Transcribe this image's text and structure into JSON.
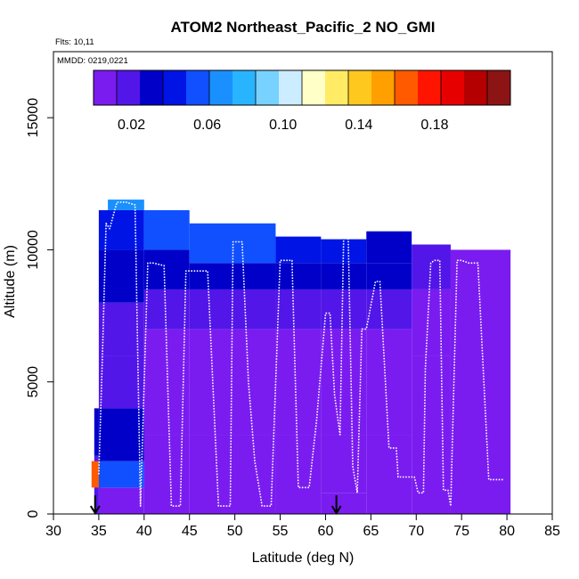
{
  "chart_data": {
    "type": "heatmap",
    "title": "ATOM2 Northeast_Pacific_2 NO_GMI",
    "annotations": {
      "flights": "Flts: 10,11",
      "dates": "MMDD: 0219,0221"
    },
    "xlabel": "Latitude (deg N)",
    "ylabel": "Altitude (m)",
    "xlim": [
      30,
      85
    ],
    "ylim": [
      0,
      17500
    ],
    "x_ticks": [
      30,
      35,
      40,
      45,
      50,
      55,
      60,
      65,
      70,
      75,
      80,
      85
    ],
    "y_ticks": [
      0,
      5000,
      10000,
      15000
    ],
    "colorbar": {
      "range": [
        0,
        0.22
      ],
      "tick_values": [
        0.02,
        0.06,
        0.1,
        0.14,
        0.18
      ],
      "tick_labels": [
        "0.02",
        "0.06",
        "0.10",
        "0.14",
        "0.18"
      ],
      "colors": [
        "#7a1cf0",
        "#5216e8",
        "#0000c8",
        "#0014e6",
        "#1050ff",
        "#1a90ff",
        "#28b4ff",
        "#78d2ff",
        "#ccecff",
        "#ffffc8",
        "#ffec64",
        "#ffc81e",
        "#ffa000",
        "#ff5a00",
        "#ff1400",
        "#e60000",
        "#b40000",
        "#8c1414"
      ]
    },
    "columns": [
      {
        "lat": [
          34.5,
          35.0
        ],
        "top": 4000,
        "levels": [
          [
            0,
            2200,
            0.02
          ],
          [
            2200,
            4000,
            0.025
          ]
        ]
      },
      {
        "lat": [
          34.2,
          35.3
        ],
        "top": 2000,
        "levels": [
          [
            1000,
            2000,
            0.16
          ]
        ]
      },
      {
        "lat": [
          35.0,
          40.0
        ],
        "top": 11500,
        "levels": [
          [
            0,
            1000,
            0.01
          ],
          [
            1000,
            2000,
            0.05
          ],
          [
            2000,
            4000,
            0.025
          ],
          [
            4000,
            6000,
            0.015
          ],
          [
            6000,
            8000,
            0.02
          ],
          [
            8000,
            10000,
            0.025
          ],
          [
            10000,
            11500,
            0.045
          ]
        ]
      },
      {
        "lat": [
          36.0,
          40.0
        ],
        "top": 11900,
        "levels": [
          [
            11500,
            11900,
            0.07
          ]
        ]
      },
      {
        "lat": [
          40.0,
          45.0
        ],
        "top": 11500,
        "levels": [
          [
            0,
            3000,
            0.008
          ],
          [
            3000,
            7000,
            0.012
          ],
          [
            7000,
            8500,
            0.02
          ],
          [
            8500,
            10000,
            0.03
          ],
          [
            10000,
            11500,
            0.05
          ]
        ]
      },
      {
        "lat": [
          45.0,
          54.5
        ],
        "top": 11000,
        "levels": [
          [
            0,
            3000,
            0.008
          ],
          [
            3000,
            7000,
            0.01
          ],
          [
            7000,
            8500,
            0.02
          ],
          [
            8500,
            9500,
            0.03
          ],
          [
            9500,
            11000,
            0.05
          ]
        ]
      },
      {
        "lat": [
          54.5,
          59.5
        ],
        "top": 10500,
        "levels": [
          [
            0,
            3000,
            0.008
          ],
          [
            3000,
            7000,
            0.01
          ],
          [
            7000,
            8500,
            0.02
          ],
          [
            8500,
            9500,
            0.03
          ],
          [
            9500,
            10500,
            0.045
          ]
        ]
      },
      {
        "lat": [
          59.5,
          64.5
        ],
        "top": 10400,
        "levels": [
          [
            0,
            800,
            0.012
          ],
          [
            800,
            3000,
            0.008
          ],
          [
            3000,
            7000,
            0.01
          ],
          [
            7000,
            8500,
            0.02
          ],
          [
            8500,
            9500,
            0.03
          ],
          [
            9500,
            10400,
            0.045
          ]
        ]
      },
      {
        "lat": [
          64.5,
          69.5
        ],
        "top": 10700,
        "levels": [
          [
            0,
            3000,
            0.007
          ],
          [
            3000,
            7000,
            0.01
          ],
          [
            7000,
            8500,
            0.02
          ],
          [
            8500,
            9500,
            0.025
          ],
          [
            9500,
            10700,
            0.035
          ]
        ]
      },
      {
        "lat": [
          69.5,
          73.8
        ],
        "top": 10200,
        "levels": [
          [
            0,
            6000,
            0.007
          ],
          [
            6000,
            8500,
            0.012
          ],
          [
            8500,
            10200,
            0.02
          ]
        ]
      },
      {
        "lat": [
          73.8,
          80.4
        ],
        "top": 10000,
        "levels": [
          [
            0,
            10000,
            0.006
          ]
        ]
      }
    ],
    "flight_track": {
      "lat": [
        35.0,
        35.4,
        35.8,
        36.2,
        37.0,
        38.0,
        39.0,
        39.6,
        40.4,
        41.0,
        42.2,
        43.0,
        44.0,
        44.6,
        45.6,
        46.0,
        47.0,
        48.2,
        49.0,
        49.5,
        49.8,
        50.8,
        51.5,
        52.2,
        53.0,
        54.0,
        55.0,
        55.6,
        56.3,
        57.0,
        58.2,
        59.0,
        60.0,
        60.5,
        61.0,
        61.6,
        62.0,
        62.5,
        63.0,
        63.5,
        64.0,
        64.5,
        65.5,
        66.0,
        67.0,
        67.8,
        68.0,
        69.0,
        69.8,
        70.2,
        70.8,
        71.0,
        71.6,
        72.0,
        72.6,
        73.0,
        73.5,
        73.8,
        74.5,
        75.0,
        75.8,
        76.2,
        76.8,
        78.0,
        79.0,
        79.6
      ],
      "alt": [
        1500,
        6000,
        11000,
        10800,
        11800,
        11800,
        11700,
        300,
        9500,
        9500,
        9400,
        300,
        300,
        9200,
        9200,
        9200,
        9200,
        300,
        300,
        300,
        10300,
        10300,
        5000,
        2000,
        300,
        300,
        9600,
        9600,
        9600,
        1000,
        1000,
        3500,
        7600,
        7600,
        4500,
        3000,
        10500,
        10500,
        1800,
        800,
        7000,
        7000,
        8800,
        8800,
        2500,
        2500,
        1400,
        1400,
        1400,
        800,
        800,
        5500,
        9500,
        9600,
        9600,
        900,
        900,
        300,
        9600,
        9600,
        9500,
        9500,
        9500,
        1300,
        1300,
        1300
      ]
    },
    "markers": [
      {
        "lat": 34.6,
        "label": "arrow"
      },
      {
        "lat": 61.2,
        "label": "arrow"
      }
    ]
  }
}
